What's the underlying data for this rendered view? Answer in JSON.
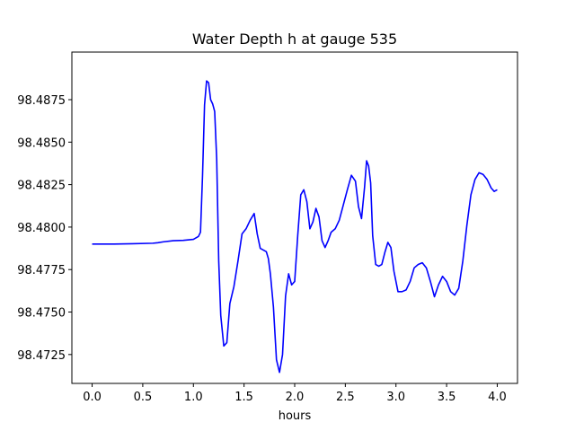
{
  "chart_data": {
    "type": "line",
    "title": "Water Depth h at gauge 535",
    "xlabel": "hours",
    "ylabel": "",
    "xlim": [
      -0.2,
      4.2
    ],
    "ylim": [
      98.4708,
      98.4903
    ],
    "xticks": [
      0.0,
      0.5,
      1.0,
      1.5,
      2.0,
      2.5,
      3.0,
      3.5,
      4.0
    ],
    "xtick_labels": [
      "0.0",
      "0.5",
      "1.0",
      "1.5",
      "2.0",
      "2.5",
      "3.0",
      "3.5",
      "4.0"
    ],
    "yticks": [
      98.4725,
      98.475,
      98.4775,
      98.48,
      98.4825,
      98.485,
      98.4875
    ],
    "ytick_labels": [
      "98.4725",
      "98.4750",
      "98.4775",
      "98.4800",
      "98.4825",
      "98.4850",
      "98.4875"
    ],
    "grid": false,
    "series": [
      {
        "color": "#0000ff",
        "x": [
          0.0,
          0.2,
          0.4,
          0.6,
          0.65,
          0.7,
          0.8,
          0.9,
          1.0,
          1.05,
          1.07,
          1.09,
          1.11,
          1.13,
          1.15,
          1.17,
          1.19,
          1.21,
          1.23,
          1.25,
          1.27,
          1.3,
          1.33,
          1.36,
          1.4,
          1.44,
          1.48,
          1.52,
          1.56,
          1.6,
          1.63,
          1.66,
          1.69,
          1.72,
          1.74,
          1.76,
          1.79,
          1.82,
          1.85,
          1.88,
          1.91,
          1.94,
          1.97,
          2.0,
          2.03,
          2.06,
          2.09,
          2.12,
          2.15,
          2.18,
          2.21,
          2.24,
          2.27,
          2.3,
          2.33,
          2.36,
          2.4,
          2.44,
          2.48,
          2.52,
          2.56,
          2.6,
          2.63,
          2.66,
          2.69,
          2.71,
          2.73,
          2.75,
          2.77,
          2.8,
          2.83,
          2.86,
          2.89,
          2.92,
          2.95,
          2.98,
          3.02,
          3.06,
          3.1,
          3.14,
          3.18,
          3.22,
          3.26,
          3.3,
          3.34,
          3.38,
          3.42,
          3.46,
          3.5,
          3.54,
          3.58,
          3.62,
          3.66,
          3.7,
          3.74,
          3.78,
          3.82,
          3.86,
          3.9,
          3.94,
          3.97,
          4.0
        ],
        "y": [
          98.479,
          98.479,
          98.47902,
          98.47905,
          98.47908,
          98.47913,
          98.4792,
          98.47922,
          98.47928,
          98.47945,
          98.4797,
          98.483,
          98.4872,
          98.4886,
          98.4885,
          98.4875,
          98.48725,
          98.4868,
          98.484,
          98.478,
          98.4748,
          98.473,
          98.4732,
          98.4755,
          98.4765,
          98.478,
          98.4796,
          98.4799,
          98.4804,
          98.4808,
          98.4796,
          98.47875,
          98.47865,
          98.47855,
          98.47815,
          98.47725,
          98.4753,
          98.4722,
          98.47145,
          98.4725,
          98.47595,
          98.47725,
          98.4766,
          98.4768,
          98.4795,
          98.4819,
          98.4822,
          98.4815,
          98.4799,
          98.4803,
          98.4811,
          98.4806,
          98.4792,
          98.4788,
          98.4792,
          98.4797,
          98.4799,
          98.4804,
          98.4813,
          98.4822,
          98.48305,
          98.4827,
          98.4812,
          98.4805,
          98.48235,
          98.4839,
          98.4836,
          98.4826,
          98.4795,
          98.4778,
          98.4777,
          98.4778,
          98.4785,
          98.4791,
          98.4788,
          98.4774,
          98.4762,
          98.4762,
          98.4763,
          98.4768,
          98.4776,
          98.4778,
          98.4779,
          98.4776,
          98.4768,
          98.4759,
          98.4766,
          98.4771,
          98.4768,
          98.4762,
          98.476,
          98.4764,
          98.478,
          98.4801,
          98.4819,
          98.4828,
          98.4832,
          98.4831,
          98.4828,
          98.4823,
          98.4821,
          98.4822
        ]
      }
    ]
  }
}
